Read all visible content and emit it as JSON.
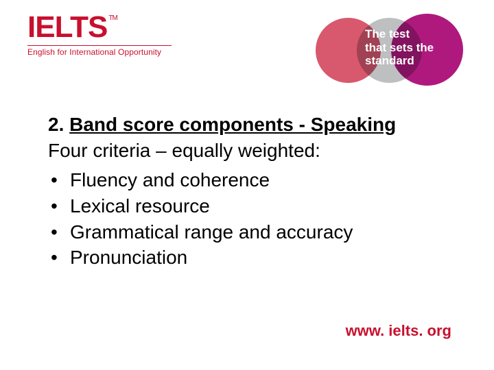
{
  "brand": {
    "name": "IELTS",
    "tm": "TM",
    "tagline": "English for International Opportunity",
    "primary_color": "#c8102e"
  },
  "badge": {
    "line1": "The test",
    "line2": "that sets the",
    "line3": "standard",
    "circle_colors": [
      "#c8102e",
      "#a7a9ac",
      "#a6006f"
    ]
  },
  "slide": {
    "heading_prefix": "2. ",
    "heading_underlined": "Band score components - Speaking",
    "subheading": "Four criteria – equally weighted:",
    "bullets": [
      "Fluency and coherence",
      "Lexical resource",
      "Grammatical range and accuracy",
      "Pronunciation"
    ]
  },
  "footer": {
    "url": "www. ielts. org"
  },
  "style": {
    "body_font_size": 28,
    "heading_font_size": 28,
    "footer_font_size": 22,
    "text_color": "#000000",
    "background_color": "#ffffff"
  }
}
